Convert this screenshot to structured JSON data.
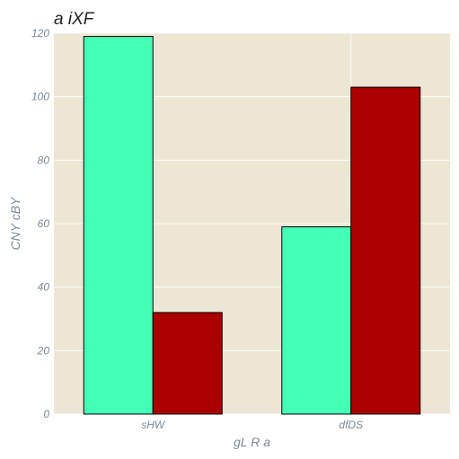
{
  "chart_data": {
    "type": "bar",
    "title": "a iXF",
    "xlabel": "gL R a",
    "ylabel": "CNY cBY",
    "categories": [
      "sHW",
      "dfDS"
    ],
    "series": [
      {
        "values": [
          119,
          59
        ],
        "color": "#44ffb6"
      },
      {
        "values": [
          32,
          103
        ],
        "color": "#aa0000"
      }
    ],
    "ylim": [
      0,
      120
    ],
    "yticks": [
      0,
      20,
      40,
      60,
      80,
      100,
      120
    ],
    "grid": true,
    "background": "#ede6d4",
    "grid_color": "#ffffff",
    "bar_edge_color": "#000000"
  }
}
